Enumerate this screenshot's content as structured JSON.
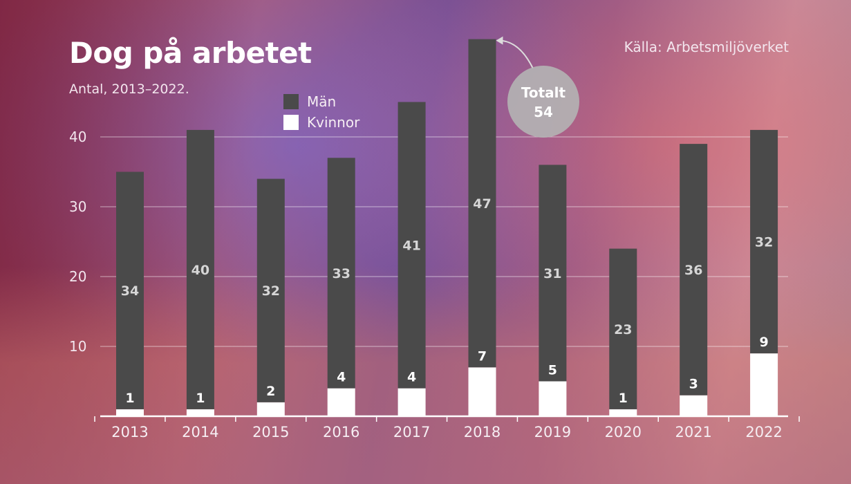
{
  "colors": {
    "men": "#4a4a4a",
    "women": "#ffffff",
    "gridline": "#ffffff",
    "callout": "#b4b4b4"
  },
  "header": {
    "title": "Dog på arbetet",
    "subtitle": "Antal, 2013–2022.",
    "source": "Källa: Arbetsmiljöverket"
  },
  "callout": {
    "line1": "Totalt",
    "line2": "54"
  },
  "chart_data": {
    "type": "bar",
    "stacked": true,
    "categories": [
      "2013",
      "2014",
      "2015",
      "2016",
      "2017",
      "2018",
      "2019",
      "2020",
      "2021",
      "2022"
    ],
    "series": [
      {
        "name": "Män",
        "values": [
          34,
          40,
          32,
          33,
          41,
          47,
          31,
          23,
          36,
          32
        ]
      },
      {
        "name": "Kvinnor",
        "values": [
          1,
          1,
          2,
          4,
          4,
          7,
          5,
          1,
          3,
          9
        ]
      }
    ],
    "yticks": [
      10,
      20,
      30,
      40
    ],
    "ylim": [
      0,
      54
    ],
    "title": "Dog på arbetet",
    "subtitle": "Antal, 2013–2022.",
    "grid": true,
    "legend_position": "top-center"
  }
}
